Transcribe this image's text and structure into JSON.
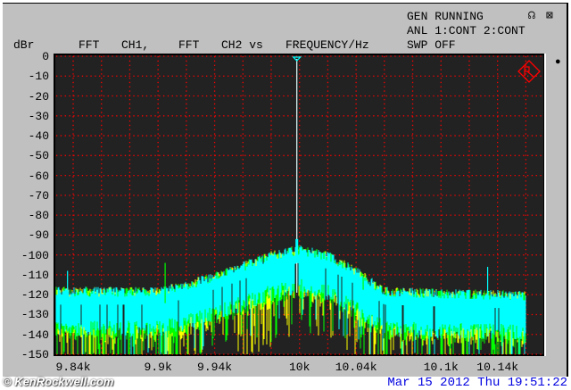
{
  "status": {
    "line1": "GEN RUNNING",
    "line2": "ANL 1:CONT 2:CONT",
    "line3": "SWP OFF"
  },
  "icons": [
    "headphones-icon",
    "speaker-muted-icon",
    "cursor-marker-icon",
    "rs-logo-icon"
  ],
  "chart_data": {
    "type": "line",
    "title_parts": [
      "FFT",
      "CH1,",
      "FFT",
      "CH2 vs",
      "FREQUENCY/Hz"
    ],
    "ylabel": "dBr",
    "xlabel": "FREQUENCY/Hz",
    "ylim": [
      -150,
      0
    ],
    "xlim_hz": [
      9828,
      10173
    ],
    "y_ticks": [
      "0",
      "-10",
      "-20",
      "-30",
      "-40",
      "-50",
      "-60",
      "-70",
      "-80",
      "-90",
      "-100",
      "-110",
      "-120",
      "-130",
      "-140",
      "-150"
    ],
    "x_ticks": [
      {
        "value": 9840,
        "label": "9.84k"
      },
      {
        "value": 9900,
        "label": "9.9k"
      },
      {
        "value": 9940,
        "label": "9.94k"
      },
      {
        "value": 10000,
        "label": "10k"
      },
      {
        "value": 10040,
        "label": "10.04k"
      },
      {
        "value": 10100,
        "label": "10.1k"
      },
      {
        "value": 10140,
        "label": "10.14k"
      }
    ],
    "grid": true,
    "grid_color": "#ff0000",
    "background": "#222222",
    "series_colors": [
      "#ffff00",
      "#00ff00",
      "#00ffff"
    ],
    "tone": {
      "freq_hz": 10000,
      "level_db": 0,
      "skirt_db": -92
    },
    "noise_top_envelope": [
      [
        9828,
        -120
      ],
      [
        9900,
        -120
      ],
      [
        9920,
        -117
      ],
      [
        9950,
        -110
      ],
      [
        9980,
        -102
      ],
      [
        10000,
        -99
      ],
      [
        10020,
        -102
      ],
      [
        10040,
        -110
      ],
      [
        10060,
        -120
      ],
      [
        10100,
        -121
      ],
      [
        10160,
        -122
      ]
    ],
    "noise_band_depth_db": 15,
    "noise_floor_min_db": -150,
    "spurs": [
      {
        "freq_hz": 9836,
        "level_db": -108,
        "color": "#00ffff"
      },
      {
        "freq_hz": 9905,
        "level_db": -104,
        "color": "#00ff00"
      },
      {
        "freq_hz": 10045,
        "level_db": -110,
        "color": "#00ff00"
      },
      {
        "freq_hz": 10133,
        "level_db": -106,
        "color": "#00ffff"
      }
    ],
    "trace_end_hz": 10160
  },
  "footer": {
    "watermark": "© KenRockwell.com",
    "datetime": "Mar 15 2012 Thu 19:51:22"
  }
}
